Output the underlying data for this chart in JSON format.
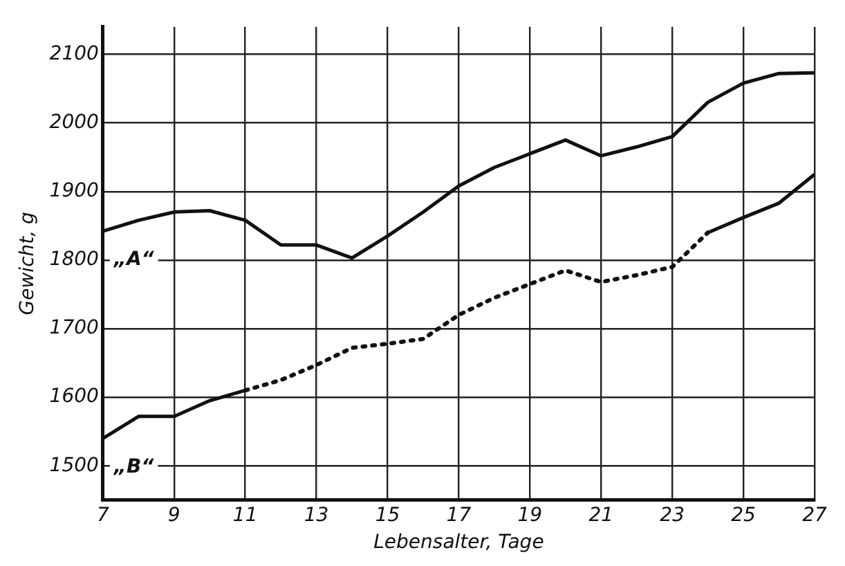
{
  "chart_data": {
    "type": "line",
    "xlabel": "Lebensalter, Tage",
    "ylabel": "Gewicht, g",
    "x": [
      7,
      8,
      9,
      10,
      11,
      12,
      13,
      14,
      15,
      16,
      17,
      18,
      19,
      20,
      21,
      22,
      23,
      24,
      25,
      26,
      27
    ],
    "series": [
      {
        "name": "„A“",
        "color": "#111111",
        "line_style": "solid",
        "values": [
          1842,
          1858,
          1870,
          1872,
          1858,
          1822,
          1822,
          1803,
          1835,
          1870,
          1908,
          1935,
          1955,
          1975,
          1952,
          1965,
          1980,
          2030,
          2058,
          2072,
          2073
        ]
      },
      {
        "name": "„B“",
        "color": "#111111",
        "line_style": "solid",
        "values": [
          1540,
          1572,
          1572,
          1595,
          1610,
          null,
          null,
          null,
          null,
          null,
          null,
          null,
          null,
          null,
          null,
          null,
          null,
          1840,
          1862,
          1883,
          1925
        ]
      },
      {
        "color": "#111111",
        "line_style": "dotted",
        "values": [
          null,
          null,
          null,
          null,
          1610,
          1625,
          1647,
          1672,
          1678,
          1685,
          1720,
          1745,
          1765,
          1785,
          1768,
          1778,
          1790,
          1840,
          null,
          null,
          null
        ]
      }
    ],
    "xlim": [
      7,
      27
    ],
    "xticks": [
      7,
      9,
      11,
      13,
      15,
      17,
      19,
      21,
      23,
      25,
      27
    ],
    "ylim": [
      1450,
      2140
    ],
    "yticks": [
      1500,
      1600,
      1700,
      1800,
      1900,
      2000,
      2100
    ],
    "grid": true,
    "marker": "none",
    "legend": false
  }
}
